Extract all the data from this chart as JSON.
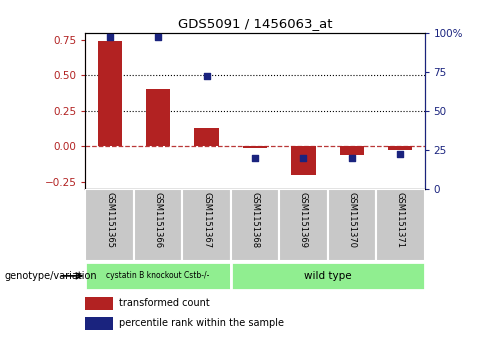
{
  "title": "GDS5091 / 1456063_at",
  "samples": [
    "GSM1151365",
    "GSM1151366",
    "GSM1151367",
    "GSM1151368",
    "GSM1151369",
    "GSM1151370",
    "GSM1151371"
  ],
  "transformed_count": [
    0.74,
    0.4,
    0.13,
    -0.01,
    -0.2,
    -0.06,
    -0.03
  ],
  "percentile_rank": [
    97,
    97,
    72,
    20,
    20,
    20,
    22
  ],
  "bar_color": "#b22222",
  "dot_color": "#1a237e",
  "ylim_left": [
    -0.3,
    0.8
  ],
  "ylim_right": [
    0,
    100
  ],
  "yticks_left": [
    -0.25,
    0.0,
    0.25,
    0.5,
    0.75
  ],
  "yticks_right": [
    0,
    25,
    50,
    75,
    100
  ],
  "hline_y": [
    0.25,
    0.5
  ],
  "zero_line_y": 0.0,
  "background_color": "#ffffff",
  "legend_items": [
    "transformed count",
    "percentile rank within the sample"
  ],
  "genotype_label": "genotype/variation",
  "group1_label": "cystatin B knockout Cstb-/-",
  "group2_label": "wild type",
  "group1_indices": [
    0,
    1,
    2
  ],
  "group2_indices": [
    3,
    4,
    5,
    6
  ],
  "group1_color": "#90EE90",
  "group2_color": "#90EE90",
  "label_bg_color": "#c8c8c8",
  "bar_width": 0.5
}
